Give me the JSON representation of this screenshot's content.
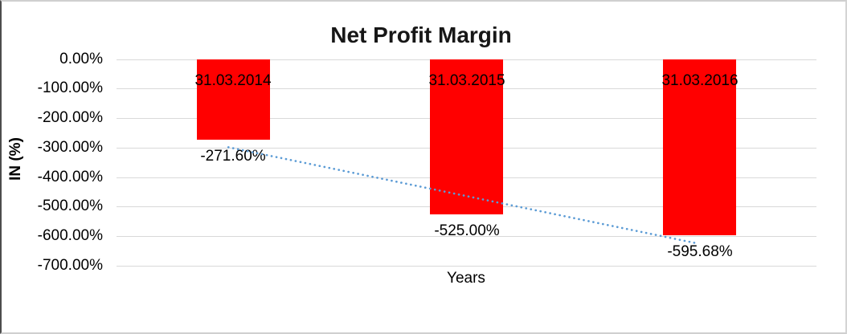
{
  "chart_data": {
    "type": "bar",
    "title": "Net Profit Margin",
    "xlabel": "Years",
    "ylabel": "IN (%)",
    "categories": [
      "31.03.2014",
      "31.03.2015",
      "31.03.2016"
    ],
    "values": [
      -271.6,
      -525.0,
      -595.68
    ],
    "data_labels": [
      "-271.60%",
      "-525.00%",
      "-595.68%"
    ],
    "yticks": [
      0,
      -100,
      -200,
      -300,
      -400,
      -500,
      -600,
      -700
    ],
    "ytick_labels": [
      "0.00%",
      "-100.00%",
      "-200.00%",
      "-300.00%",
      "-400.00%",
      "-500.00%",
      "-600.00%",
      "-700.00%"
    ],
    "ylim": [
      -700,
      0
    ],
    "grid": true,
    "legend_position": "none",
    "bar_color": "#FF0000",
    "gridline_color": "#D9D9D9",
    "trendline": {
      "type": "linear",
      "style": "dotted",
      "color": "#5B9BD5",
      "series": "values"
    }
  }
}
